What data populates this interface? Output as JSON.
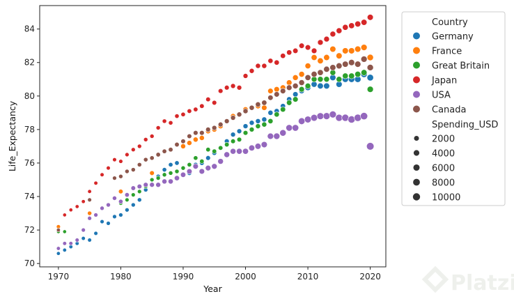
{
  "chart_data": {
    "type": "scatter",
    "xlabel": "Year",
    "ylabel": "Life_Expectancy",
    "xlim": [
      1967,
      2022.5
    ],
    "ylim": [
      69.8,
      85.4
    ],
    "xticks": [
      1970,
      1980,
      1990,
      2000,
      2010,
      2020
    ],
    "yticks": [
      70,
      72,
      74,
      76,
      78,
      80,
      82,
      84
    ],
    "grid": false,
    "legend_position": "outside-right",
    "hue_title": "Country",
    "size_title": "Spending_USD",
    "size_legend": [
      {
        "label": "2000",
        "value": 2000
      },
      {
        "label": "4000",
        "value": 4000
      },
      {
        "label": "6000",
        "value": 6000
      },
      {
        "label": "8000",
        "value": 8000
      },
      {
        "label": "10000",
        "value": 10000
      }
    ],
    "series": [
      {
        "name": "Germany",
        "color": "#1f77b4",
        "x": [
          1970,
          1971,
          1972,
          1973,
          1974,
          1975,
          1976,
          1977,
          1978,
          1979,
          1980,
          1981,
          1982,
          1983,
          1984,
          1985,
          1986,
          1987,
          1988,
          1989,
          1990,
          1991,
          1992,
          1993,
          1994,
          1995,
          1996,
          1997,
          1998,
          1999,
          2000,
          2001,
          2002,
          2003,
          2004,
          2005,
          2006,
          2007,
          2008,
          2009,
          2010,
          2011,
          2012,
          2013,
          2014,
          2015,
          2016,
          2017,
          2018,
          2019,
          2020
        ],
        "y": [
          70.6,
          70.8,
          71.0,
          71.2,
          71.5,
          71.4,
          71.8,
          72.5,
          72.4,
          72.8,
          72.9,
          73.2,
          73.5,
          73.8,
          74.4,
          75.0,
          75.2,
          75.6,
          75.9,
          76.0,
          75.3,
          75.4,
          75.9,
          76.0,
          76.3,
          76.6,
          76.9,
          77.3,
          77.7,
          77.9,
          78.2,
          78.4,
          78.5,
          78.6,
          79.0,
          79.1,
          79.4,
          79.8,
          80.1,
          80.3,
          80.5,
          80.7,
          80.6,
          80.6,
          81.1,
          80.7,
          81.0,
          81.0,
          81.0,
          81.3,
          81.1
        ],
        "spending": [
          270,
          290,
          320,
          350,
          380,
          420,
          460,
          500,
          540,
          580,
          620,
          680,
          720,
          770,
          820,
          880,
          940,
          1000,
          1070,
          1140,
          1250,
          1300,
          1370,
          1440,
          1510,
          1590,
          1650,
          1700,
          1750,
          1800,
          1900,
          2000,
          2100,
          2200,
          2300,
          2400,
          2500,
          2700,
          2900,
          3100,
          4200,
          4500,
          4700,
          4900,
          5100,
          5300,
          5600,
          5900,
          6200,
          6500,
          6800
        ]
      },
      {
        "name": "France",
        "color": "#ff7f0e",
        "x": [
          1970,
          1975,
          1980,
          1985,
          1990,
          1991,
          1992,
          1993,
          1994,
          1995,
          1996,
          1997,
          1998,
          1999,
          2000,
          2001,
          2002,
          2003,
          2004,
          2005,
          2006,
          2007,
          2008,
          2009,
          2010,
          2011,
          2012,
          2013,
          2014,
          2015,
          2016,
          2017,
          2018,
          2019,
          2020
        ],
        "y": [
          72.2,
          73.0,
          74.3,
          75.4,
          77.0,
          77.2,
          77.4,
          77.5,
          77.9,
          78.0,
          78.2,
          78.5,
          78.8,
          78.9,
          79.2,
          79.3,
          79.4,
          79.3,
          80.3,
          80.4,
          80.5,
          80.8,
          81.1,
          81.3,
          81.8,
          82.3,
          82.1,
          82.3,
          82.8,
          82.4,
          82.7,
          82.7,
          82.8,
          82.9,
          82.3
        ],
        "spending": [
          500,
          800,
          1200,
          1500,
          2000,
          2050,
          2100,
          2150,
          2200,
          2250,
          2300,
          2350,
          2400,
          2500,
          2600,
          2700,
          2800,
          3000,
          3100,
          3200,
          3300,
          3500,
          3700,
          3900,
          4100,
          4300,
          4500,
          4700,
          4900,
          5000,
          5100,
          5200,
          5400,
          5600,
          6000
        ]
      },
      {
        "name": "Great Britain",
        "color": "#2ca02c",
        "x": [
          1970,
          1971,
          1980,
          1981,
          1982,
          1983,
          1984,
          1985,
          1986,
          1987,
          1988,
          1989,
          1990,
          1991,
          1992,
          1993,
          1994,
          1995,
          1996,
          1997,
          1998,
          1999,
          2000,
          2001,
          2002,
          2003,
          2004,
          2005,
          2006,
          2007,
          2008,
          2009,
          2010,
          2011,
          2012,
          2013,
          2014,
          2015,
          2016,
          2017,
          2018,
          2019,
          2020
        ],
        "y": [
          71.9,
          71.9,
          73.6,
          73.8,
          74.1,
          74.3,
          74.6,
          75.0,
          75.1,
          75.3,
          75.4,
          75.5,
          75.7,
          75.9,
          76.3,
          76.1,
          76.8,
          76.7,
          76.9,
          77.1,
          77.3,
          77.4,
          77.8,
          78.0,
          78.2,
          78.3,
          78.5,
          78.9,
          79.2,
          79.6,
          79.8,
          80.4,
          80.6,
          81.0,
          81.0,
          81.0,
          81.4,
          81.0,
          81.2,
          81.2,
          81.3,
          81.4,
          80.4
        ],
        "spending": [
          200,
          220,
          480,
          520,
          560,
          600,
          640,
          680,
          720,
          760,
          800,
          850,
          900,
          980,
          1050,
          1100,
          1150,
          1200,
          1280,
          1350,
          1430,
          1500,
          1600,
          1800,
          2000,
          2200,
          2400,
          2600,
          2800,
          3000,
          3200,
          3400,
          3600,
          3700,
          3800,
          3900,
          4000,
          4100,
          4200,
          4400,
          4600,
          4800,
          5500
        ]
      },
      {
        "name": "Japan",
        "color": "#d62728",
        "x": [
          1970,
          1971,
          1972,
          1973,
          1974,
          1975,
          1976,
          1977,
          1978,
          1979,
          1980,
          1981,
          1982,
          1983,
          1984,
          1985,
          1986,
          1987,
          1988,
          1989,
          1990,
          1991,
          1992,
          1993,
          1994,
          1995,
          1996,
          1997,
          1998,
          1999,
          2000,
          2001,
          2002,
          2003,
          2004,
          2005,
          2006,
          2007,
          2008,
          2009,
          2010,
          2011,
          2012,
          2013,
          2014,
          2015,
          2016,
          2017,
          2018,
          2019,
          2020
        ],
        "y": [
          72.0,
          72.9,
          73.2,
          73.4,
          73.7,
          74.3,
          74.8,
          75.3,
          75.7,
          76.2,
          76.1,
          76.5,
          76.8,
          77.0,
          77.4,
          77.6,
          78.1,
          78.5,
          78.4,
          78.8,
          78.9,
          79.1,
          79.2,
          79.4,
          79.8,
          79.6,
          80.3,
          80.5,
          80.6,
          80.5,
          81.2,
          81.5,
          81.8,
          81.8,
          82.1,
          82.0,
          82.4,
          82.6,
          82.7,
          83.0,
          82.9,
          82.7,
          83.2,
          83.4,
          83.7,
          83.9,
          84.1,
          84.2,
          84.3,
          84.4,
          84.7
        ],
        "spending": [
          200,
          220,
          240,
          270,
          300,
          340,
          380,
          420,
          460,
          500,
          560,
          600,
          640,
          690,
          730,
          780,
          830,
          880,
          930,
          990,
          1080,
          1150,
          1220,
          1300,
          1380,
          1460,
          1550,
          1620,
          1700,
          1780,
          1850,
          1950,
          2050,
          2150,
          2250,
          2400,
          2500,
          2600,
          2750,
          2900,
          3100,
          3300,
          3500,
          3700,
          3900,
          4100,
          4200,
          4300,
          4500,
          4700,
          4900
        ]
      },
      {
        "name": "USA",
        "color": "#9467bd",
        "x": [
          1970,
          1971,
          1972,
          1973,
          1974,
          1975,
          1976,
          1977,
          1978,
          1979,
          1980,
          1981,
          1982,
          1983,
          1984,
          1985,
          1986,
          1987,
          1988,
          1989,
          1990,
          1991,
          1992,
          1993,
          1994,
          1995,
          1996,
          1997,
          1998,
          1999,
          2000,
          2001,
          2002,
          2003,
          2004,
          2005,
          2006,
          2007,
          2008,
          2009,
          2010,
          2011,
          2012,
          2013,
          2014,
          2015,
          2016,
          2017,
          2018,
          2019,
          2020
        ],
        "y": [
          70.9,
          71.2,
          71.2,
          71.4,
          72.0,
          72.7,
          72.9,
          73.3,
          73.5,
          73.9,
          73.7,
          74.1,
          74.5,
          74.6,
          74.7,
          74.7,
          74.7,
          74.9,
          74.9,
          75.1,
          75.3,
          75.5,
          75.8,
          75.5,
          75.7,
          75.8,
          76.1,
          76.5,
          76.7,
          76.7,
          76.7,
          76.9,
          77.0,
          77.1,
          77.6,
          77.6,
          77.8,
          78.1,
          78.1,
          78.5,
          78.6,
          78.7,
          78.8,
          78.8,
          78.9,
          78.7,
          78.7,
          78.6,
          78.7,
          78.8,
          77.0
        ],
        "spending": [
          350,
          380,
          420,
          460,
          510,
          570,
          630,
          700,
          770,
          850,
          1000,
          1150,
          1300,
          1450,
          1600,
          1750,
          1900,
          2050,
          2250,
          2450,
          2650,
          2850,
          3050,
          3250,
          3400,
          3550,
          3700,
          3850,
          4000,
          4150,
          4350,
          4600,
          4950,
          5300,
          5650,
          6000,
          6300,
          6600,
          6900,
          7200,
          7450,
          7700,
          7900,
          8100,
          8400,
          8700,
          9000,
          9300,
          9600,
          9900,
          11000
        ]
      },
      {
        "name": "Canada",
        "color": "#8c564b",
        "x": [
          1970,
          1975,
          1979,
          1980,
          1981,
          1982,
          1983,
          1984,
          1985,
          1986,
          1987,
          1988,
          1989,
          1990,
          1991,
          1992,
          1993,
          1994,
          1995,
          1996,
          1997,
          1998,
          1999,
          2000,
          2001,
          2002,
          2003,
          2004,
          2005,
          2006,
          2007,
          2008,
          2009,
          2010,
          2011,
          2012,
          2013,
          2014,
          2015,
          2016,
          2017,
          2018,
          2019,
          2020
        ],
        "y": [
          72.0,
          73.8,
          75.1,
          75.2,
          75.5,
          75.6,
          75.9,
          76.2,
          76.3,
          76.5,
          76.7,
          76.8,
          77.1,
          77.3,
          77.6,
          77.8,
          77.8,
          78.0,
          78.1,
          78.3,
          78.5,
          78.7,
          78.9,
          79.1,
          79.3,
          79.5,
          79.6,
          79.9,
          80.1,
          80.3,
          80.5,
          80.6,
          80.8,
          81.1,
          81.3,
          81.4,
          81.6,
          81.7,
          81.8,
          81.9,
          82.0,
          81.9,
          82.2,
          81.7
        ],
        "spending": [
          300,
          500,
          650,
          700,
          760,
          820,
          880,
          940,
          1000,
          1080,
          1150,
          1220,
          1300,
          1400,
          1480,
          1560,
          1600,
          1650,
          1700,
          1750,
          1800,
          1880,
          1960,
          2050,
          2200,
          2400,
          2600,
          2800,
          3000,
          3200,
          3400,
          3600,
          3900,
          4200,
          4400,
          4500,
          4600,
          4700,
          4800,
          5000,
          5200,
          5400,
          5600,
          6000
        ]
      }
    ]
  }
}
